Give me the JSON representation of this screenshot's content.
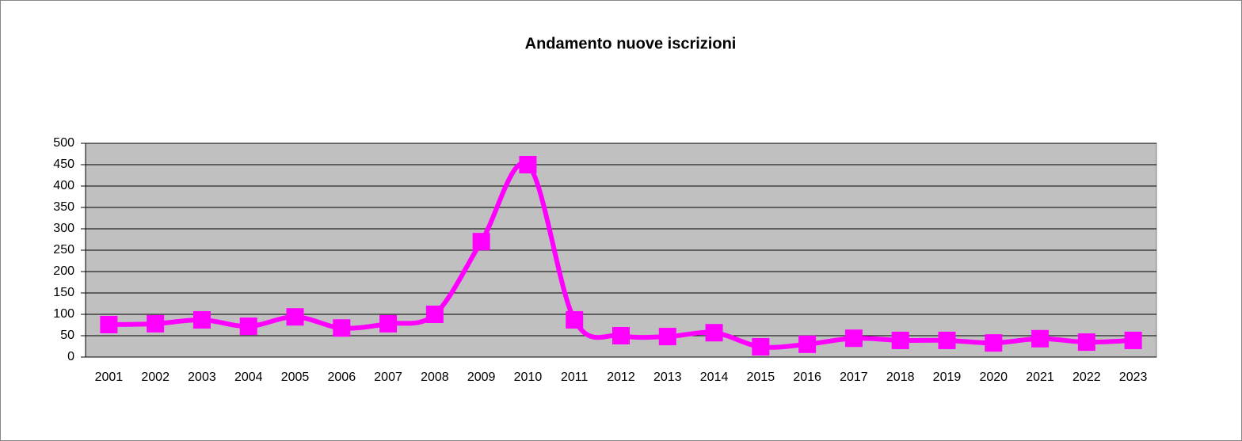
{
  "chart_data": {
    "type": "line",
    "title": "Andamento nuove iscrizioni",
    "categories": [
      "2001",
      "2002",
      "2003",
      "2004",
      "2005",
      "2006",
      "2007",
      "2008",
      "2009",
      "2010",
      "2011",
      "2012",
      "2013",
      "2014",
      "2015",
      "2016",
      "2017",
      "2018",
      "2019",
      "2020",
      "2021",
      "2022",
      "2023"
    ],
    "values": [
      76,
      78,
      87,
      72,
      94,
      68,
      78,
      100,
      270,
      450,
      87,
      50,
      48,
      57,
      24,
      30,
      44,
      39,
      39,
      33,
      43,
      35,
      39
    ],
    "color": "#ff00ff",
    "smooth": true,
    "marker": "square",
    "ylim": [
      0,
      500
    ],
    "yticks": [
      0,
      50,
      100,
      150,
      200,
      250,
      300,
      350,
      400,
      450,
      500
    ],
    "grid": true
  }
}
